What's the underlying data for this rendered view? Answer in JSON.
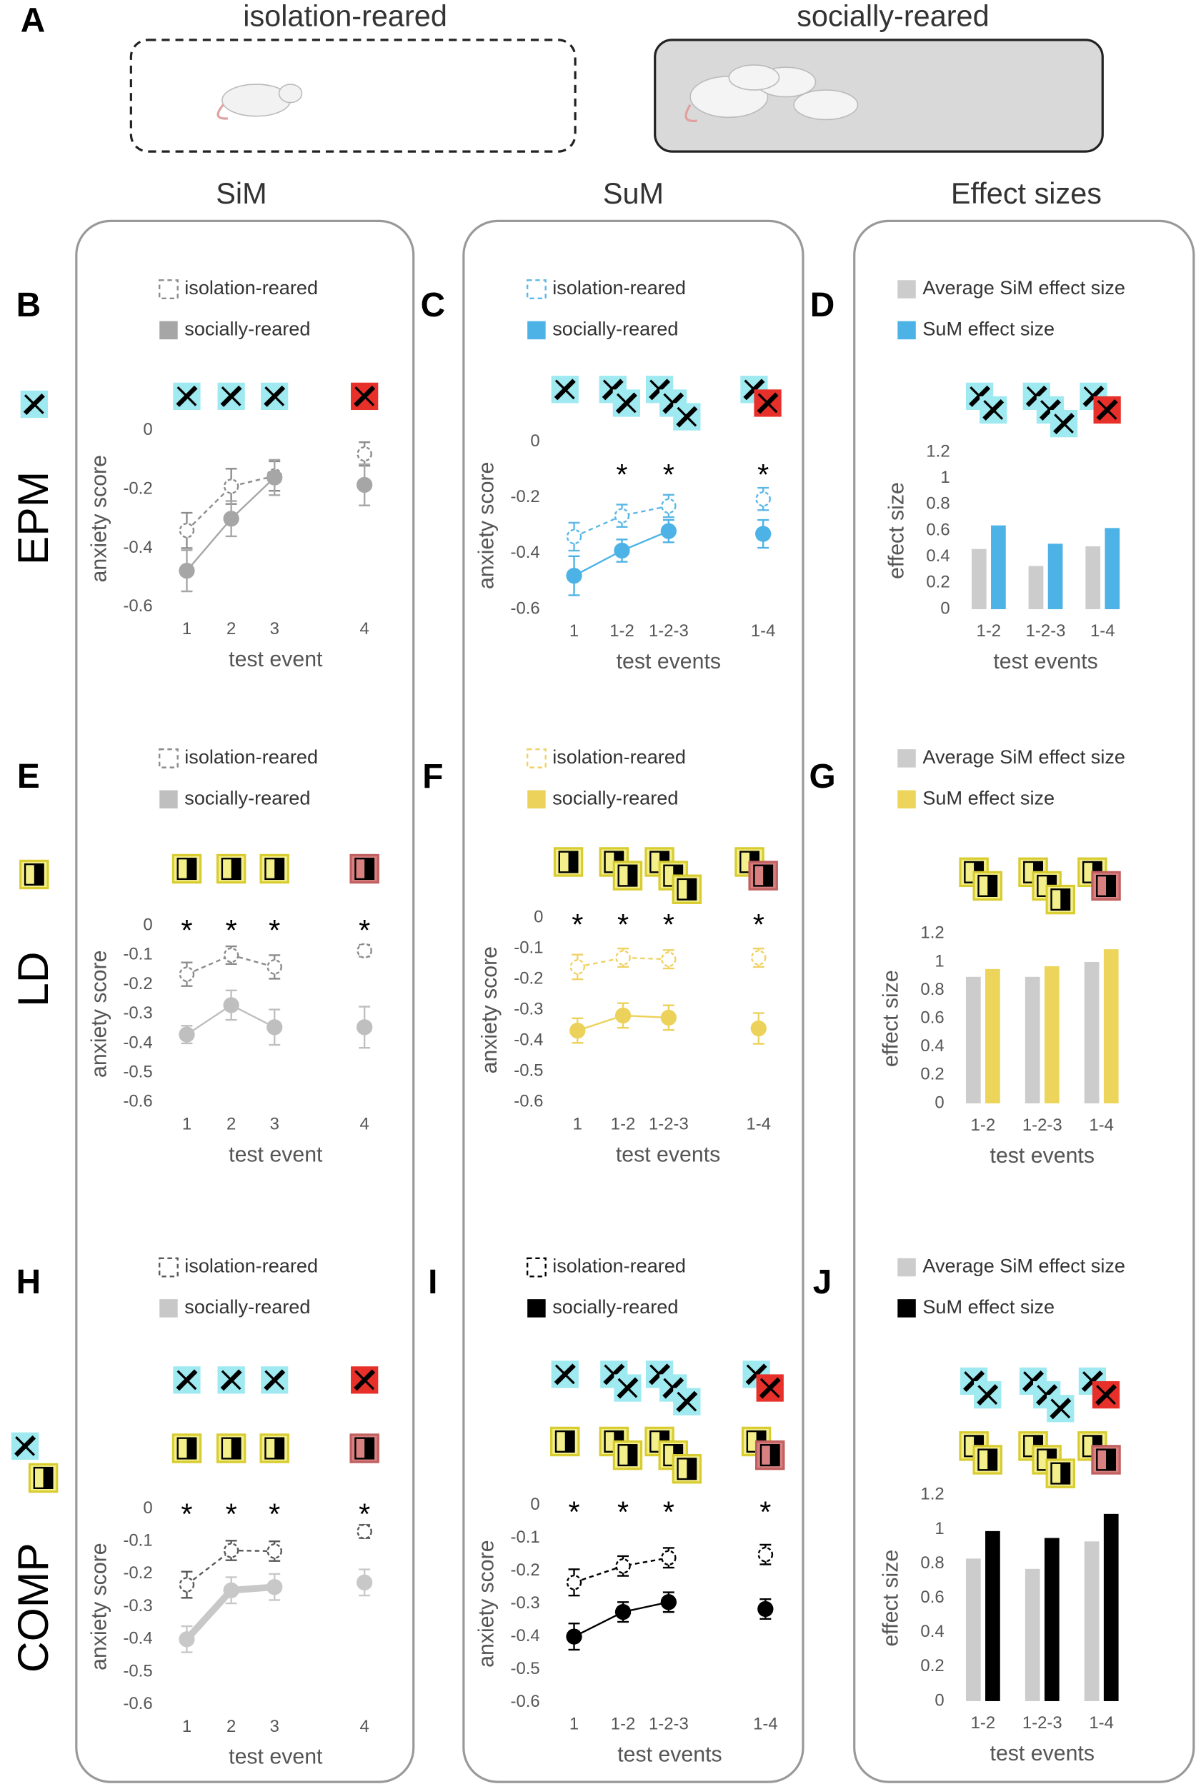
{
  "figure": {
    "panel_a": "A",
    "group_titles": [
      "isolation-reared",
      "socially-reared"
    ],
    "column_titles": [
      "SiM",
      "SuM",
      "Effect sizes"
    ],
    "row_labels": [
      "EPM",
      "LD",
      "COMP"
    ]
  },
  "chart_data": [
    {
      "type": "line",
      "panel": "B",
      "y_label": "anxiety score",
      "x_label": "test event",
      "categories": [
        "1",
        "2",
        "3",
        "4"
      ],
      "ylim": [
        -0.6,
        0
      ],
      "yticks": [
        0,
        -0.2,
        -0.4,
        -0.6
      ],
      "series": [
        {
          "name": "isolation-reared",
          "color": "#8c8c8c",
          "marker": "open",
          "values": [
            -0.34,
            -0.19,
            -0.155,
            -0.08
          ],
          "errors": [
            0.06,
            0.06,
            0.05,
            0.04
          ]
        },
        {
          "name": "socially-reared",
          "color": "#a6a6a6",
          "marker": "filled",
          "values": [
            -0.477,
            -0.3,
            -0.16,
            -0.185
          ],
          "errors": [
            0.07,
            0.06,
            0.06,
            0.07
          ]
        }
      ],
      "significant": [
        false,
        false,
        false,
        false
      ],
      "significance_label": "*"
    },
    {
      "type": "line",
      "panel": "C",
      "y_label": "anxiety score",
      "x_label": "test events",
      "categories": [
        "1",
        "1-2",
        "1-2-3",
        "1-4"
      ],
      "ylim": [
        -0.6,
        0
      ],
      "yticks": [
        0,
        -0.2,
        -0.4,
        -0.6
      ],
      "series": [
        {
          "name": "isolation-reared",
          "color": "#5bb8e6",
          "marker": "open",
          "values": [
            -0.34,
            -0.265,
            -0.23,
            -0.205
          ],
          "errors": [
            0.05,
            0.04,
            0.04,
            0.04
          ]
        },
        {
          "name": "socially-reared",
          "color": "#4db3e6",
          "marker": "filled",
          "values": [
            -0.48,
            -0.39,
            -0.32,
            -0.33
          ],
          "errors": [
            0.07,
            0.04,
            0.04,
            0.05
          ]
        }
      ],
      "significant": [
        false,
        true,
        true,
        true
      ],
      "significance_label": "*"
    },
    {
      "type": "bar",
      "panel": "D",
      "y_label": "effect size",
      "x_label": "test events",
      "categories": [
        "1-2",
        "1-2-3",
        "1-4"
      ],
      "ylim": [
        0,
        1.2
      ],
      "yticks": [
        0,
        0.2,
        0.4,
        0.6,
        0.8,
        1,
        1.2
      ],
      "series": [
        {
          "name": "Average SiM effect size",
          "color": "#cccccc",
          "values": [
            0.46,
            0.33,
            0.48
          ]
        },
        {
          "name": "SuM effect size",
          "color": "#4db3e6",
          "values": [
            0.64,
            0.5,
            0.62
          ]
        }
      ]
    },
    {
      "type": "line",
      "panel": "E",
      "y_label": "anxiety score",
      "x_label": "test event",
      "categories": [
        "1",
        "2",
        "3",
        "4"
      ],
      "ylim": [
        -0.6,
        0
      ],
      "yticks": [
        0,
        -0.1,
        -0.2,
        -0.3,
        -0.4,
        -0.5,
        -0.6
      ],
      "series": [
        {
          "name": "isolation-reared",
          "color": "#8c8c8c",
          "marker": "open",
          "values": [
            -0.165,
            -0.1,
            -0.14,
            -0.085
          ],
          "errors": [
            0.04,
            0.03,
            0.04,
            0.02
          ]
        },
        {
          "name": "socially-reared",
          "color": "#bfbfbf",
          "marker": "filled",
          "values": [
            -0.37,
            -0.27,
            -0.345,
            -0.345
          ],
          "errors": [
            0.03,
            0.05,
            0.06,
            0.07
          ]
        }
      ],
      "significant": [
        true,
        true,
        true,
        true
      ],
      "significance_label": "*"
    },
    {
      "type": "line",
      "panel": "F",
      "y_label": "anxiety score",
      "x_label": "test events",
      "categories": [
        "1",
        "1-2",
        "1-2-3",
        "1-4"
      ],
      "ylim": [
        -0.6,
        0
      ],
      "yticks": [
        0,
        -0.1,
        -0.2,
        -0.3,
        -0.4,
        -0.5,
        -0.6
      ],
      "series": [
        {
          "name": "isolation-reared",
          "color": "#f0d264",
          "marker": "open",
          "values": [
            -0.16,
            -0.13,
            -0.135,
            -0.13
          ],
          "errors": [
            0.04,
            0.03,
            0.03,
            0.03
          ]
        },
        {
          "name": "socially-reared",
          "color": "#ecd25a",
          "marker": "filled",
          "values": [
            -0.367,
            -0.318,
            -0.325,
            -0.36
          ],
          "errors": [
            0.04,
            0.04,
            0.04,
            0.05
          ]
        }
      ],
      "significant": [
        true,
        true,
        true,
        true
      ],
      "significance_label": "*"
    },
    {
      "type": "bar",
      "panel": "G",
      "y_label": "effect size",
      "x_label": "test events",
      "categories": [
        "1-2",
        "1-2-3",
        "1-4"
      ],
      "ylim": [
        0,
        1.2
      ],
      "yticks": [
        0,
        0.2,
        0.4,
        0.6,
        0.8,
        1,
        1.2
      ],
      "series": [
        {
          "name": "Average SiM effect size",
          "color": "#cccccc",
          "values": [
            0.895,
            0.895,
            1.0
          ]
        },
        {
          "name": "SuM effect size",
          "color": "#ecd55a",
          "values": [
            0.95,
            0.97,
            1.09
          ]
        }
      ]
    },
    {
      "type": "line",
      "panel": "H",
      "y_label": "anxiety score",
      "x_label": "test event",
      "categories": [
        "1",
        "2",
        "3",
        "4"
      ],
      "ylim": [
        -0.6,
        0
      ],
      "yticks": [
        0,
        -0.1,
        -0.2,
        -0.3,
        -0.4,
        -0.5,
        -0.6
      ],
      "series": [
        {
          "name": "isolation-reared",
          "color": "#595959",
          "marker": "open",
          "values": [
            -0.233,
            -0.128,
            -0.13,
            -0.07
          ],
          "errors": [
            0.04,
            0.03,
            0.03,
            0.02
          ]
        },
        {
          "name": "socially-reared",
          "color": "#c8c8c8",
          "marker": "filled",
          "thick_line": true,
          "values": [
            -0.4,
            -0.25,
            -0.24,
            -0.226
          ],
          "errors": [
            0.04,
            0.04,
            0.04,
            0.04
          ]
        }
      ],
      "significant": [
        true,
        true,
        true,
        true
      ],
      "significance_label": "*"
    },
    {
      "type": "line",
      "panel": "I",
      "y_label": "anxiety score",
      "x_label": "test events",
      "categories": [
        "1",
        "1-2",
        "1-2-3",
        "1-4"
      ],
      "ylim": [
        -0.6,
        0
      ],
      "yticks": [
        0,
        -0.1,
        -0.2,
        -0.3,
        -0.4,
        -0.5,
        -0.6
      ],
      "series": [
        {
          "name": "isolation-reared",
          "color": "#000000",
          "marker": "open",
          "values": [
            -0.235,
            -0.185,
            -0.16,
            -0.15
          ],
          "errors": [
            0.04,
            0.03,
            0.03,
            0.03
          ]
        },
        {
          "name": "socially-reared",
          "color": "#000000",
          "marker": "filled",
          "values": [
            -0.4,
            -0.325,
            -0.295,
            -0.316
          ],
          "errors": [
            0.04,
            0.03,
            0.03,
            0.03
          ]
        }
      ],
      "significant": [
        true,
        true,
        true,
        true
      ],
      "significance_label": "*"
    },
    {
      "type": "bar",
      "panel": "J",
      "y_label": "effect size",
      "x_label": "test events",
      "categories": [
        "1-2",
        "1-2-3",
        "1-4"
      ],
      "ylim": [
        0,
        1.2
      ],
      "yticks": [
        0,
        0.2,
        0.4,
        0.6,
        0.8,
        1,
        1.2
      ],
      "series": [
        {
          "name": "Average SiM effect size",
          "color": "#cccccc",
          "values": [
            0.83,
            0.77,
            0.93
          ]
        },
        {
          "name": "SuM effect size",
          "color": "#000000",
          "values": [
            0.99,
            0.95,
            1.09
          ]
        }
      ]
    }
  ]
}
